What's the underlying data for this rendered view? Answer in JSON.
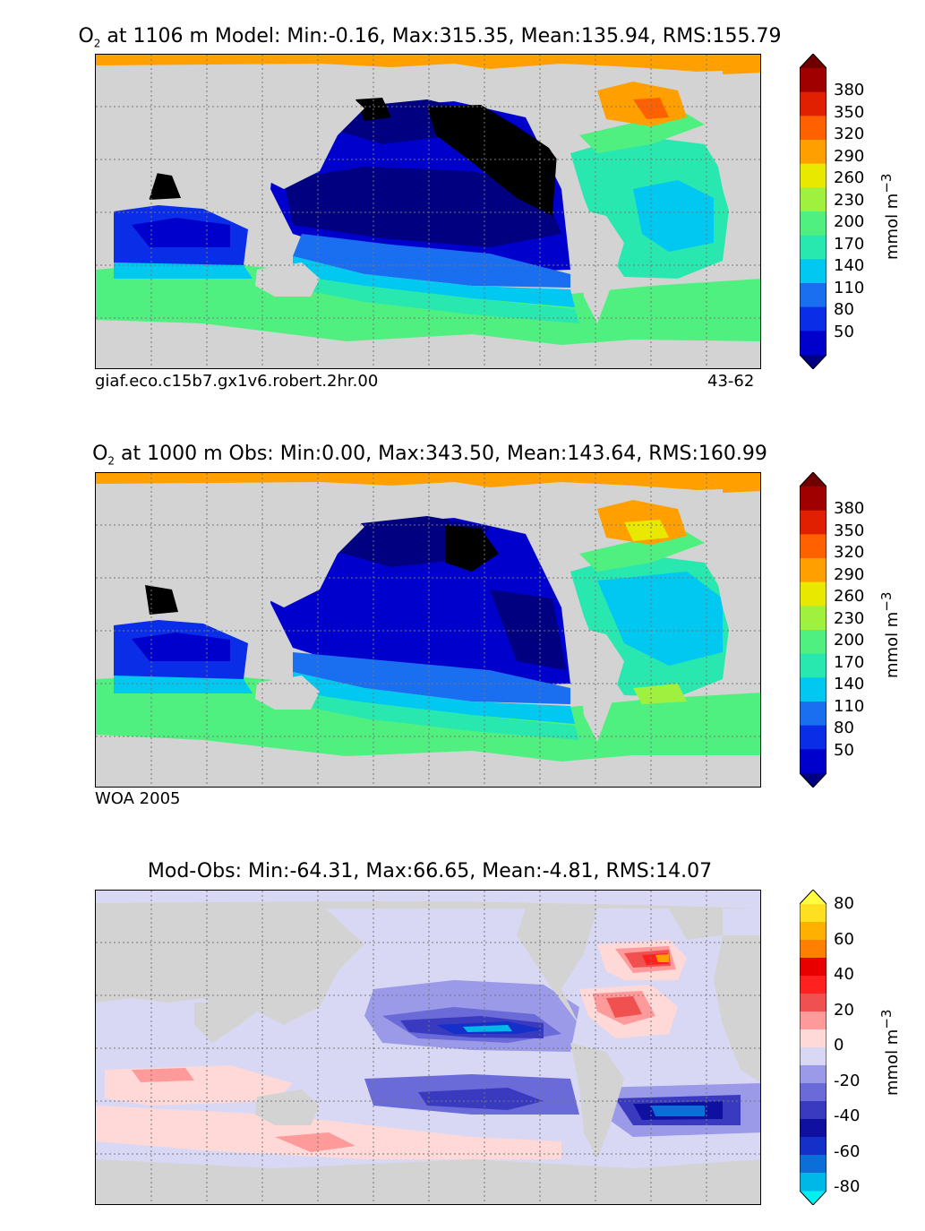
{
  "panels": [
    {
      "title_prefix": "O",
      "title_sub": "2",
      "title_rest": " at 1106 m Model: Min:-0.16, Max:315.35, Mean:135.94, RMS:155.79",
      "caption_left": "giaf.eco.c15b7.gx1v6.robert.2hr.00",
      "caption_right": "43-62",
      "colorbar": {
        "ticks": [
          "380",
          "350",
          "320",
          "290",
          "260",
          "230",
          "200",
          "170",
          "140",
          "110",
          "80",
          "50"
        ],
        "unit": "mmol m",
        "unit_sup": "−3",
        "colors": [
          "#000080",
          "#0000cd",
          "#0a2ee8",
          "#1a6ef0",
          "#00c8f0",
          "#28e8b0",
          "#50f080",
          "#a0f040",
          "#e8e800",
          "#ffa000",
          "#ff6000",
          "#e02000",
          "#a00000",
          "#700000"
        ]
      }
    },
    {
      "title_prefix": "O",
      "title_sub": "2",
      "title_rest": " at 1000 m Obs: Min:0.00, Max:343.50, Mean:143.64, RMS:160.99",
      "caption_left": "WOA 2005",
      "caption_right": "",
      "colorbar": {
        "ticks": [
          "380",
          "350",
          "320",
          "290",
          "260",
          "230",
          "200",
          "170",
          "140",
          "110",
          "80",
          "50"
        ],
        "unit": "mmol m",
        "unit_sup": "−3",
        "colors": [
          "#000080",
          "#0000cd",
          "#0a2ee8",
          "#1a6ef0",
          "#00c8f0",
          "#28e8b0",
          "#50f080",
          "#a0f040",
          "#e8e800",
          "#ffa000",
          "#ff6000",
          "#e02000",
          "#a00000",
          "#700000"
        ]
      }
    },
    {
      "title_prefix": "",
      "title_sub": "",
      "title_rest": "Mod-Obs: Min:-64.31, Max:66.65, Mean:-4.81, RMS:14.07",
      "caption_left": "",
      "caption_right": "",
      "colorbar": {
        "ticks": [
          "80",
          "60",
          "40",
          "20",
          "0",
          "-20",
          "-40",
          "-60",
          "-80"
        ],
        "unit": "mmol m",
        "unit_sup": "−3",
        "colors": [
          "#00f0f0",
          "#00b8e8",
          "#0a70d8",
          "#1430c8",
          "#1010a0",
          "#3a3ac0",
          "#6a6ad8",
          "#9a9ae8",
          "#d8d8f4",
          "#ffd8d8",
          "#ff9a9a",
          "#f05050",
          "#ff2020",
          "#e80000",
          "#ff8000",
          "#ffb000",
          "#ffe020",
          "#ffff40"
        ]
      }
    }
  ]
}
